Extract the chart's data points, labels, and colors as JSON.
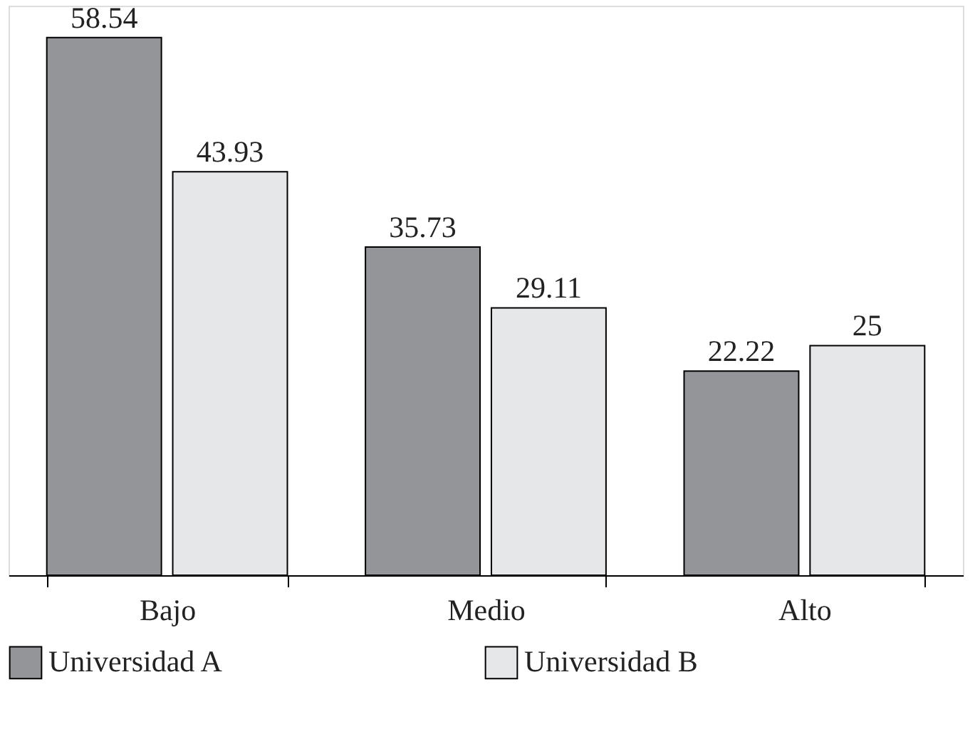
{
  "chart_data": {
    "type": "bar",
    "categories": [
      "Bajo",
      "Medio",
      "Alto"
    ],
    "series": [
      {
        "name": "Universidad A",
        "color": "#939598",
        "values": [
          58.54,
          35.73,
          22.22
        ]
      },
      {
        "name": "Universidad B",
        "color": "#e6e7e8",
        "values": [
          43.93,
          29.11,
          25
        ]
      }
    ],
    "ylim": [
      0,
      62
    ],
    "data_labels": true,
    "legend": "bottom",
    "grid": false
  }
}
